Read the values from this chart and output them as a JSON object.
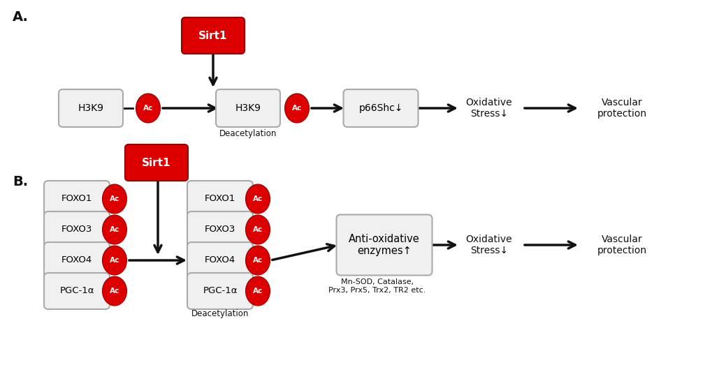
{
  "bg_color": "#ffffff",
  "red_color": "#dd0000",
  "red_dark": "#990000",
  "box_face": "#f0f0f0",
  "box_edge": "#aaaaaa",
  "black": "#111111",
  "white": "#ffffff",
  "label_A": "A.",
  "label_B": "B.",
  "sirt1": "Sirt1",
  "ac": "Ac",
  "panelA": {
    "h3k9_left": "H3K9",
    "h3k9_right": "H3K9",
    "deacetylation": "Deacetylation",
    "p66shc": "p66Shc↓",
    "ox_stress": "Oxidative\nStress↓",
    "vasc": "Vascular\nprotection"
  },
  "panelB": {
    "rows_left": [
      "FOXO1",
      "FOXO3",
      "FOXO4",
      "PGC-1α"
    ],
    "rows_right": [
      "FOXO1",
      "FOXO3",
      "FOXO4",
      "PGC-1α"
    ],
    "deacetylation": "Deacetylation",
    "anti_ox": "Anti-oxidative\nenzymes↑",
    "anti_ox_sub": "Mn-SOD, Catalase,\nPrx3, Prx5, Trx2, TR2 etc.",
    "ox_stress": "Oxidative\nStress↓",
    "vasc": "Vascular\nprotection"
  },
  "figw": 10.2,
  "figh": 5.33
}
